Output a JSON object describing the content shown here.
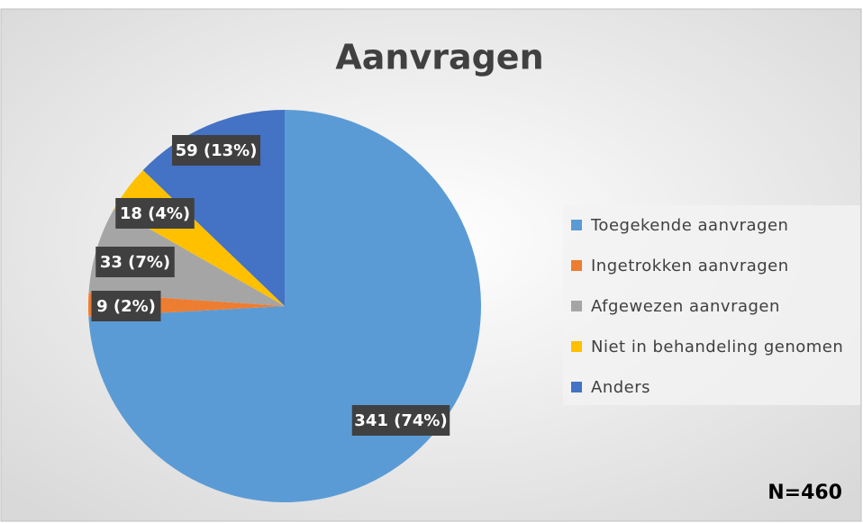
{
  "chart_data": {
    "type": "pie",
    "title": "Aanvragen",
    "categories": [
      "Toegekende aanvragen",
      "Ingetrokken aanvragen",
      "Afgewezen aanvragen",
      "Niet in behandeling genomen",
      "Anders"
    ],
    "values": [
      341,
      9,
      33,
      18,
      59
    ],
    "value_labels": [
      "341 (74%)",
      "9 (2%)",
      "33 (7%)",
      "18 (4%)",
      "59 (13%)"
    ],
    "colors": [
      "#5b9bd5",
      "#ed7d31",
      "#a5a5a5",
      "#ffc000",
      "#4472c4"
    ],
    "legend": "right",
    "annotation": "N=460"
  }
}
